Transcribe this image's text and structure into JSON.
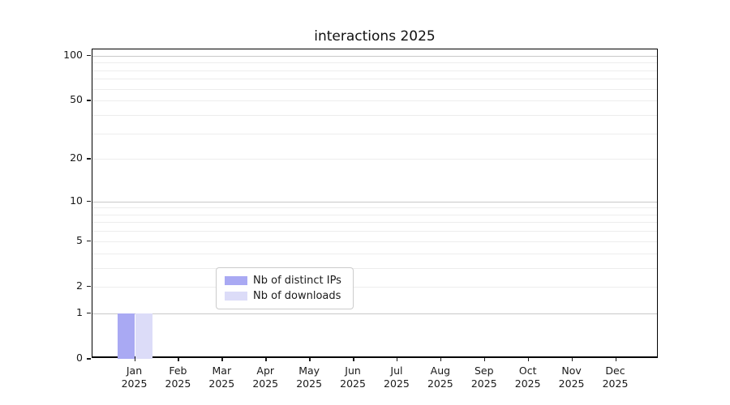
{
  "title": "interactions 2025",
  "chart_data": {
    "type": "bar",
    "title": "interactions 2025",
    "categories": [
      "Jan",
      "Feb",
      "Mar",
      "Apr",
      "May",
      "Jun",
      "Jul",
      "Aug",
      "Sep",
      "Oct",
      "Nov",
      "Dec"
    ],
    "category_year": "2025",
    "series": [
      {
        "name": "Nb of distinct IPs",
        "color": "#a9a9f3",
        "values": [
          1,
          0,
          0,
          0,
          0,
          0,
          0,
          0,
          0,
          0,
          0,
          0
        ]
      },
      {
        "name": "Nb of downloads",
        "color": "#dcdcf8",
        "values": [
          1,
          0,
          0,
          0,
          0,
          0,
          0,
          0,
          0,
          0,
          0,
          0
        ]
      }
    ],
    "xlabel": "",
    "ylabel": "",
    "yscale": "log1p",
    "yticks": [
      100,
      50,
      20,
      10,
      5,
      2,
      1,
      0
    ],
    "ylim": [
      0,
      110
    ],
    "grid": true,
    "grid_major_values": [
      1,
      10,
      100
    ],
    "grid_minor_values": [
      2,
      3,
      4,
      5,
      6,
      7,
      8,
      9,
      20,
      30,
      40,
      50,
      60,
      70,
      80,
      90
    ],
    "legend_position": "lower center",
    "colors": {
      "axis": "#000000",
      "text": "#1a1a1a",
      "grid_major": "#c9c9c9",
      "grid_minor": "#ededed",
      "legend_border": "#cccccc"
    }
  },
  "legend": {
    "items": [
      {
        "label": "Nb of distinct IPs"
      },
      {
        "label": "Nb of downloads"
      }
    ]
  }
}
